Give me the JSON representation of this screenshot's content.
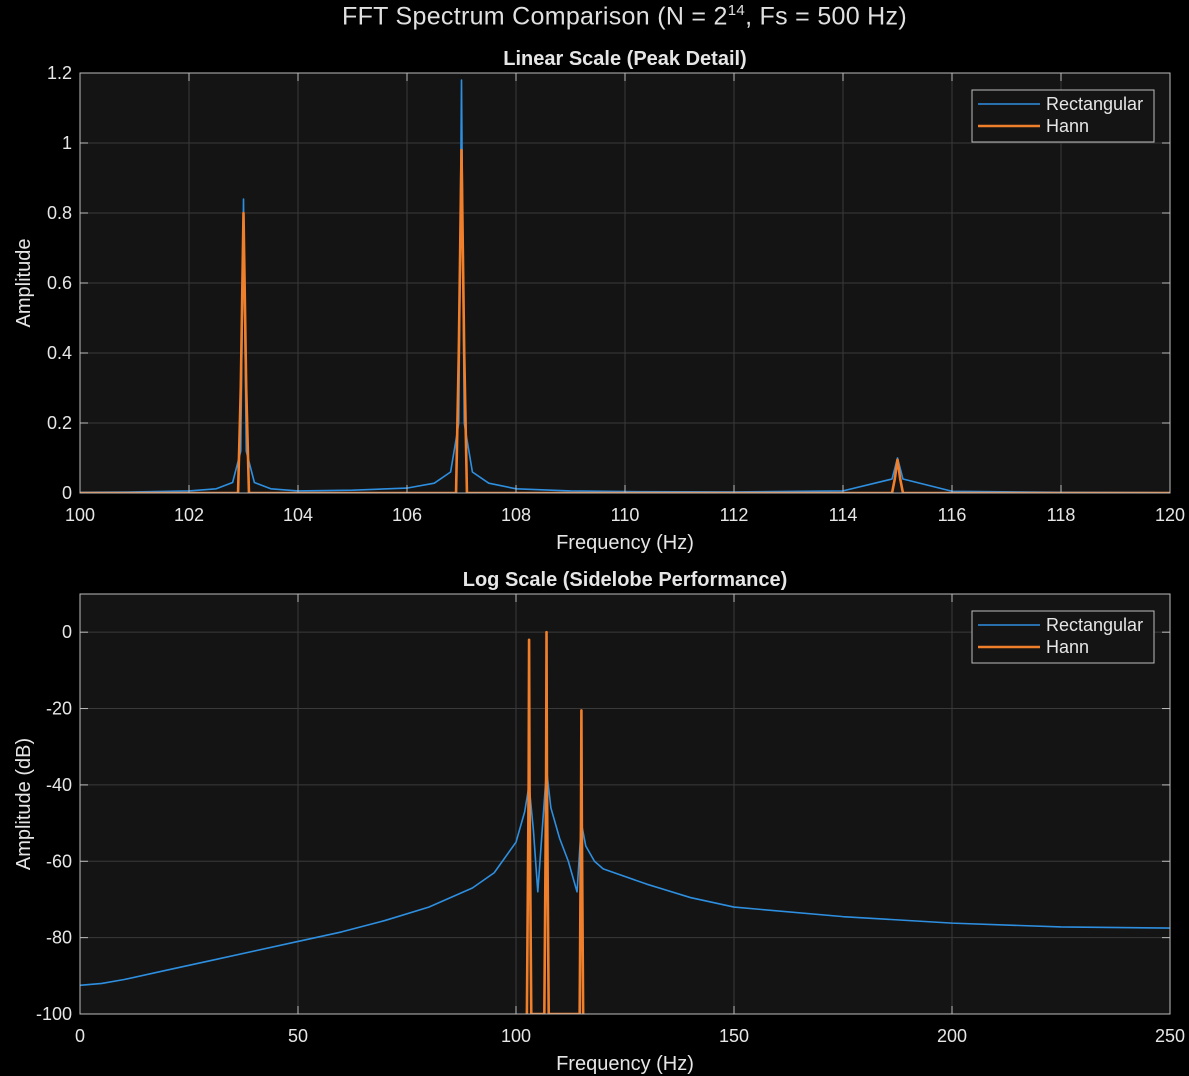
{
  "figure": {
    "title_prefix": "FFT Spectrum Comparison (N = 2",
    "title_exp": "14",
    "title_suffix": ", Fs = 500 Hz)",
    "background": "#000000",
    "axes_background": "#141414",
    "grid_color": "#3a3a3a",
    "text_color": "#e6e6e6"
  },
  "chart_data": [
    {
      "type": "line",
      "title": "Linear Scale (Peak Detail)",
      "xlabel": "Frequency (Hz)",
      "ylabel": "Amplitude",
      "xlim": [
        100,
        120
      ],
      "ylim": [
        0,
        1.2
      ],
      "xticks": [
        100,
        102,
        104,
        106,
        108,
        110,
        112,
        114,
        116,
        118,
        120
      ],
      "yticks": [
        0,
        0.2,
        0.4,
        0.6,
        0.8,
        1,
        1.2
      ],
      "grid": true,
      "legend_position": "top-right",
      "series": [
        {
          "name": "Rectangular",
          "color": "#2e8fe0",
          "points": [
            [
              100,
              0.002
            ],
            [
              101,
              0.003
            ],
            [
              102,
              0.006
            ],
            [
              102.5,
              0.012
            ],
            [
              102.8,
              0.03
            ],
            [
              102.95,
              0.12
            ],
            [
              103,
              0.84
            ],
            [
              103.05,
              0.12
            ],
            [
              103.2,
              0.03
            ],
            [
              103.5,
              0.012
            ],
            [
              104,
              0.006
            ],
            [
              105,
              0.008
            ],
            [
              106,
              0.014
            ],
            [
              106.5,
              0.028
            ],
            [
              106.8,
              0.06
            ],
            [
              106.95,
              0.2
            ],
            [
              107,
              1.18
            ],
            [
              107.05,
              0.2
            ],
            [
              107.2,
              0.06
            ],
            [
              107.5,
              0.028
            ],
            [
              108,
              0.012
            ],
            [
              109,
              0.006
            ],
            [
              110,
              0.004
            ],
            [
              112,
              0.003
            ],
            [
              114,
              0.006
            ],
            [
              114.9,
              0.04
            ],
            [
              115,
              0.1
            ],
            [
              115.1,
              0.04
            ],
            [
              116,
              0.005
            ],
            [
              118,
              0.002
            ],
            [
              120,
              0.001
            ]
          ]
        },
        {
          "name": "Hann",
          "color": "#f07f2c",
          "points": [
            [
              100,
              0
            ],
            [
              102.9,
              0
            ],
            [
              102.95,
              0.3
            ],
            [
              103,
              0.8
            ],
            [
              103.05,
              0.3
            ],
            [
              103.1,
              0
            ],
            [
              106.9,
              0
            ],
            [
              106.95,
              0.4
            ],
            [
              107,
              0.98
            ],
            [
              107.05,
              0.4
            ],
            [
              107.1,
              0
            ],
            [
              114.9,
              0
            ],
            [
              114.95,
              0.04
            ],
            [
              115,
              0.095
            ],
            [
              115.05,
              0.04
            ],
            [
              115.1,
              0
            ],
            [
              120,
              0
            ]
          ]
        }
      ]
    },
    {
      "type": "line",
      "title": "Log Scale (Sidelobe Performance)",
      "xlabel": "Frequency (Hz)",
      "ylabel": "Amplitude (dB)",
      "xlim": [
        0,
        250
      ],
      "ylim": [
        -100,
        10
      ],
      "xticks": [
        0,
        50,
        100,
        150,
        200,
        250
      ],
      "yticks": [
        -100,
        -80,
        -60,
        -40,
        -20,
        0
      ],
      "grid": true,
      "legend_position": "top-right",
      "series": [
        {
          "name": "Rectangular",
          "color": "#2e8fe0",
          "points": [
            [
              0,
              -92.5
            ],
            [
              5,
              -92
            ],
            [
              10,
              -91
            ],
            [
              20,
              -88.5
            ],
            [
              30,
              -86
            ],
            [
              40,
              -83.5
            ],
            [
              50,
              -81
            ],
            [
              60,
              -78.5
            ],
            [
              70,
              -75.5
            ],
            [
              80,
              -72
            ],
            [
              90,
              -67
            ],
            [
              95,
              -63
            ],
            [
              100,
              -55
            ],
            [
              102,
              -47
            ],
            [
              103,
              -40
            ],
            [
              104,
              -52
            ],
            [
              105,
              -68
            ],
            [
              106,
              -52
            ],
            [
              107,
              -36
            ],
            [
              108,
              -46
            ],
            [
              110,
              -54
            ],
            [
              112,
              -60
            ],
            [
              114,
              -68
            ],
            [
              115,
              -50
            ],
            [
              116,
              -56
            ],
            [
              118,
              -60
            ],
            [
              120,
              -62
            ],
            [
              130,
              -66
            ],
            [
              140,
              -69.5
            ],
            [
              150,
              -72
            ],
            [
              175,
              -74.5
            ],
            [
              200,
              -76.2
            ],
            [
              225,
              -77.2
            ],
            [
              250,
              -77.5
            ]
          ]
        },
        {
          "name": "Hann",
          "color": "#f07f2c",
          "points": [
            [
              102.5,
              -100
            ],
            [
              102.9,
              -40
            ],
            [
              103,
              -2
            ],
            [
              103.1,
              -40
            ],
            [
              103.5,
              -100
            ],
            [
              106.5,
              -100
            ],
            [
              106.9,
              -40
            ],
            [
              107,
              0
            ],
            [
              107.1,
              -40
            ],
            [
              107.5,
              -100
            ],
            [
              114.6,
              -100
            ],
            [
              114.9,
              -50
            ],
            [
              115,
              -20.5
            ],
            [
              115.1,
              -50
            ],
            [
              115.4,
              -100
            ]
          ]
        }
      ]
    }
  ]
}
